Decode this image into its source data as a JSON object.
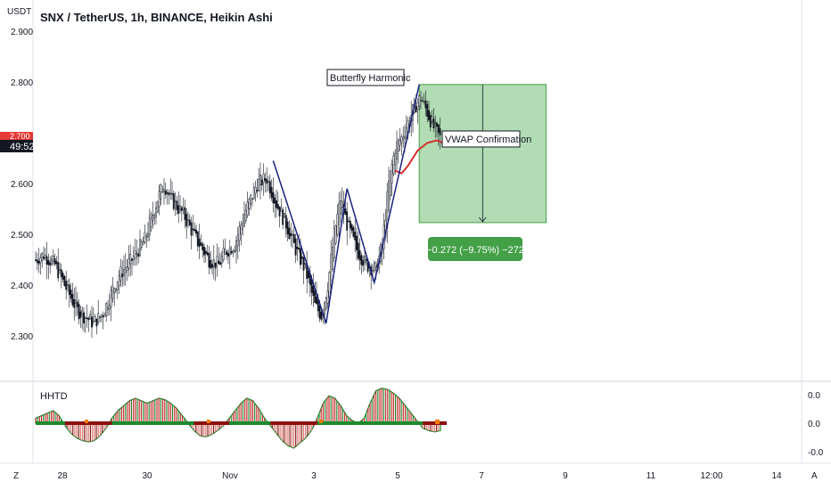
{
  "header": {
    "title": "SNX / TetherUS, 1h, BINANCE, Heikin Ashi",
    "currency": "USDT",
    "price_badge_top": "2.700",
    "countdown": "49:52"
  },
  "annotations": {
    "pattern_label": "Butterfly Harmonic",
    "vwap_label": "VWAP Confirmation",
    "measure_label": "−0.272 (−9.75%) −272"
  },
  "indicator": {
    "name": "HHTD",
    "axis_labels": [
      "0.0",
      "0.0",
      "-0.0"
    ]
  },
  "bottom_bar": {
    "left_button": "Z",
    "right_button": "A",
    "x_labels": [
      "28",
      "30",
      "Nov",
      "3",
      "5",
      "7",
      "9",
      "11",
      "12:00",
      "14"
    ]
  },
  "colors": {
    "pattern_line": "#1a237e",
    "vwap_line": "#d32f2f",
    "target_box": "#a5d6a7",
    "badge_green": "#43a047",
    "osc_up": "#1b8a2e",
    "osc_down": "#8b1010",
    "osc_fill_up": "#2e7d32",
    "osc_fill_down": "#b71c1c",
    "price_badge": "#e53935"
  },
  "chart_data": {
    "type": "candlestick",
    "title": "SNX / TetherUS, 1h, BINANCE, Heikin Ashi",
    "ylabel": "USDT",
    "y_ticks": [
      2.9,
      2.8,
      2.6,
      2.5,
      2.4,
      2.3
    ],
    "ylim": [
      2.235,
      2.935
    ],
    "x_ticks": [
      "28",
      "30",
      "Nov",
      "3",
      "5",
      "7",
      "9",
      "11",
      "12:00",
      "14"
    ],
    "price_path": [
      {
        "x": 0,
        "y": 2.45
      },
      {
        "x": 5,
        "y": 2.46
      },
      {
        "x": 12,
        "y": 2.44
      },
      {
        "x": 18,
        "y": 2.4
      },
      {
        "x": 26,
        "y": 2.35
      },
      {
        "x": 36,
        "y": 2.325
      },
      {
        "x": 42,
        "y": 2.345
      },
      {
        "x": 52,
        "y": 2.42
      },
      {
        "x": 60,
        "y": 2.45
      },
      {
        "x": 68,
        "y": 2.49
      },
      {
        "x": 76,
        "y": 2.57
      },
      {
        "x": 80,
        "y": 2.6
      },
      {
        "x": 84,
        "y": 2.57
      },
      {
        "x": 92,
        "y": 2.54
      },
      {
        "x": 100,
        "y": 2.49
      },
      {
        "x": 108,
        "y": 2.45
      },
      {
        "x": 114,
        "y": 2.44
      },
      {
        "x": 118,
        "y": 2.465
      },
      {
        "x": 124,
        "y": 2.48
      },
      {
        "x": 130,
        "y": 2.54
      },
      {
        "x": 138,
        "y": 2.6
      },
      {
        "x": 144,
        "y": 2.61
      },
      {
        "x": 150,
        "y": 2.56
      },
      {
        "x": 156,
        "y": 2.52
      },
      {
        "x": 162,
        "y": 2.47
      },
      {
        "x": 168,
        "y": 2.43
      },
      {
        "x": 174,
        "y": 2.36
      },
      {
        "x": 178,
        "y": 2.34
      },
      {
        "x": 182,
        "y": 2.4
      },
      {
        "x": 186,
        "y": 2.5
      },
      {
        "x": 190,
        "y": 2.57
      },
      {
        "x": 194,
        "y": 2.52
      },
      {
        "x": 200,
        "y": 2.47
      },
      {
        "x": 206,
        "y": 2.44
      },
      {
        "x": 212,
        "y": 2.43
      },
      {
        "x": 216,
        "y": 2.48
      },
      {
        "x": 220,
        "y": 2.6
      },
      {
        "x": 224,
        "y": 2.67
      },
      {
        "x": 228,
        "y": 2.69
      },
      {
        "x": 232,
        "y": 2.72
      },
      {
        "x": 236,
        "y": 2.75
      },
      {
        "x": 240,
        "y": 2.77
      },
      {
        "x": 244,
        "y": 2.74
      },
      {
        "x": 248,
        "y": 2.71
      },
      {
        "x": 252,
        "y": 2.69
      }
    ],
    "harmonic_pattern": [
      {
        "x": 148,
        "y": 2.645
      },
      {
        "x": 181,
        "y": 2.325
      },
      {
        "x": 194,
        "y": 2.59
      },
      {
        "x": 211,
        "y": 2.405
      },
      {
        "x": 239,
        "y": 2.795
      }
    ],
    "vwap": [
      {
        "x": 224,
        "y": 2.625
      },
      {
        "x": 228,
        "y": 2.62
      },
      {
        "x": 232,
        "y": 2.635
      },
      {
        "x": 238,
        "y": 2.665
      },
      {
        "x": 244,
        "y": 2.68
      },
      {
        "x": 250,
        "y": 2.685
      },
      {
        "x": 254,
        "y": 2.68
      }
    ],
    "target_zone": {
      "x_start": 239,
      "x_end": 318,
      "y_top": 2.795,
      "y_bottom": 2.523
    },
    "measured_move": {
      "change": -0.272,
      "percent": -9.75,
      "ticks": -272
    },
    "oscillator": {
      "name": "HHTD",
      "values": [
        0.2,
        0.3,
        0.4,
        0.5,
        0.3,
        -0.1,
        -0.4,
        -0.6,
        -0.7,
        -0.75,
        -0.7,
        -0.5,
        -0.2,
        0.2,
        0.5,
        0.7,
        0.9,
        1.0,
        0.9,
        0.8,
        0.9,
        1.0,
        0.95,
        0.8,
        0.6,
        0.3,
        0.0,
        -0.3,
        -0.5,
        -0.55,
        -0.45,
        -0.3,
        -0.1,
        0.2,
        0.5,
        0.8,
        1.0,
        0.9,
        0.6,
        0.2,
        -0.1,
        -0.4,
        -0.7,
        -0.9,
        -1.0,
        -0.8,
        -0.6,
        -0.3,
        0.2,
        0.8,
        1.1,
        1.0,
        0.7,
        0.3,
        0.1,
        0.0,
        0.2,
        0.8,
        1.3,
        1.4,
        1.35,
        1.2,
        1.0,
        0.7,
        0.4,
        0.1,
        -0.2,
        -0.3,
        -0.35,
        -0.3
      ]
    }
  }
}
